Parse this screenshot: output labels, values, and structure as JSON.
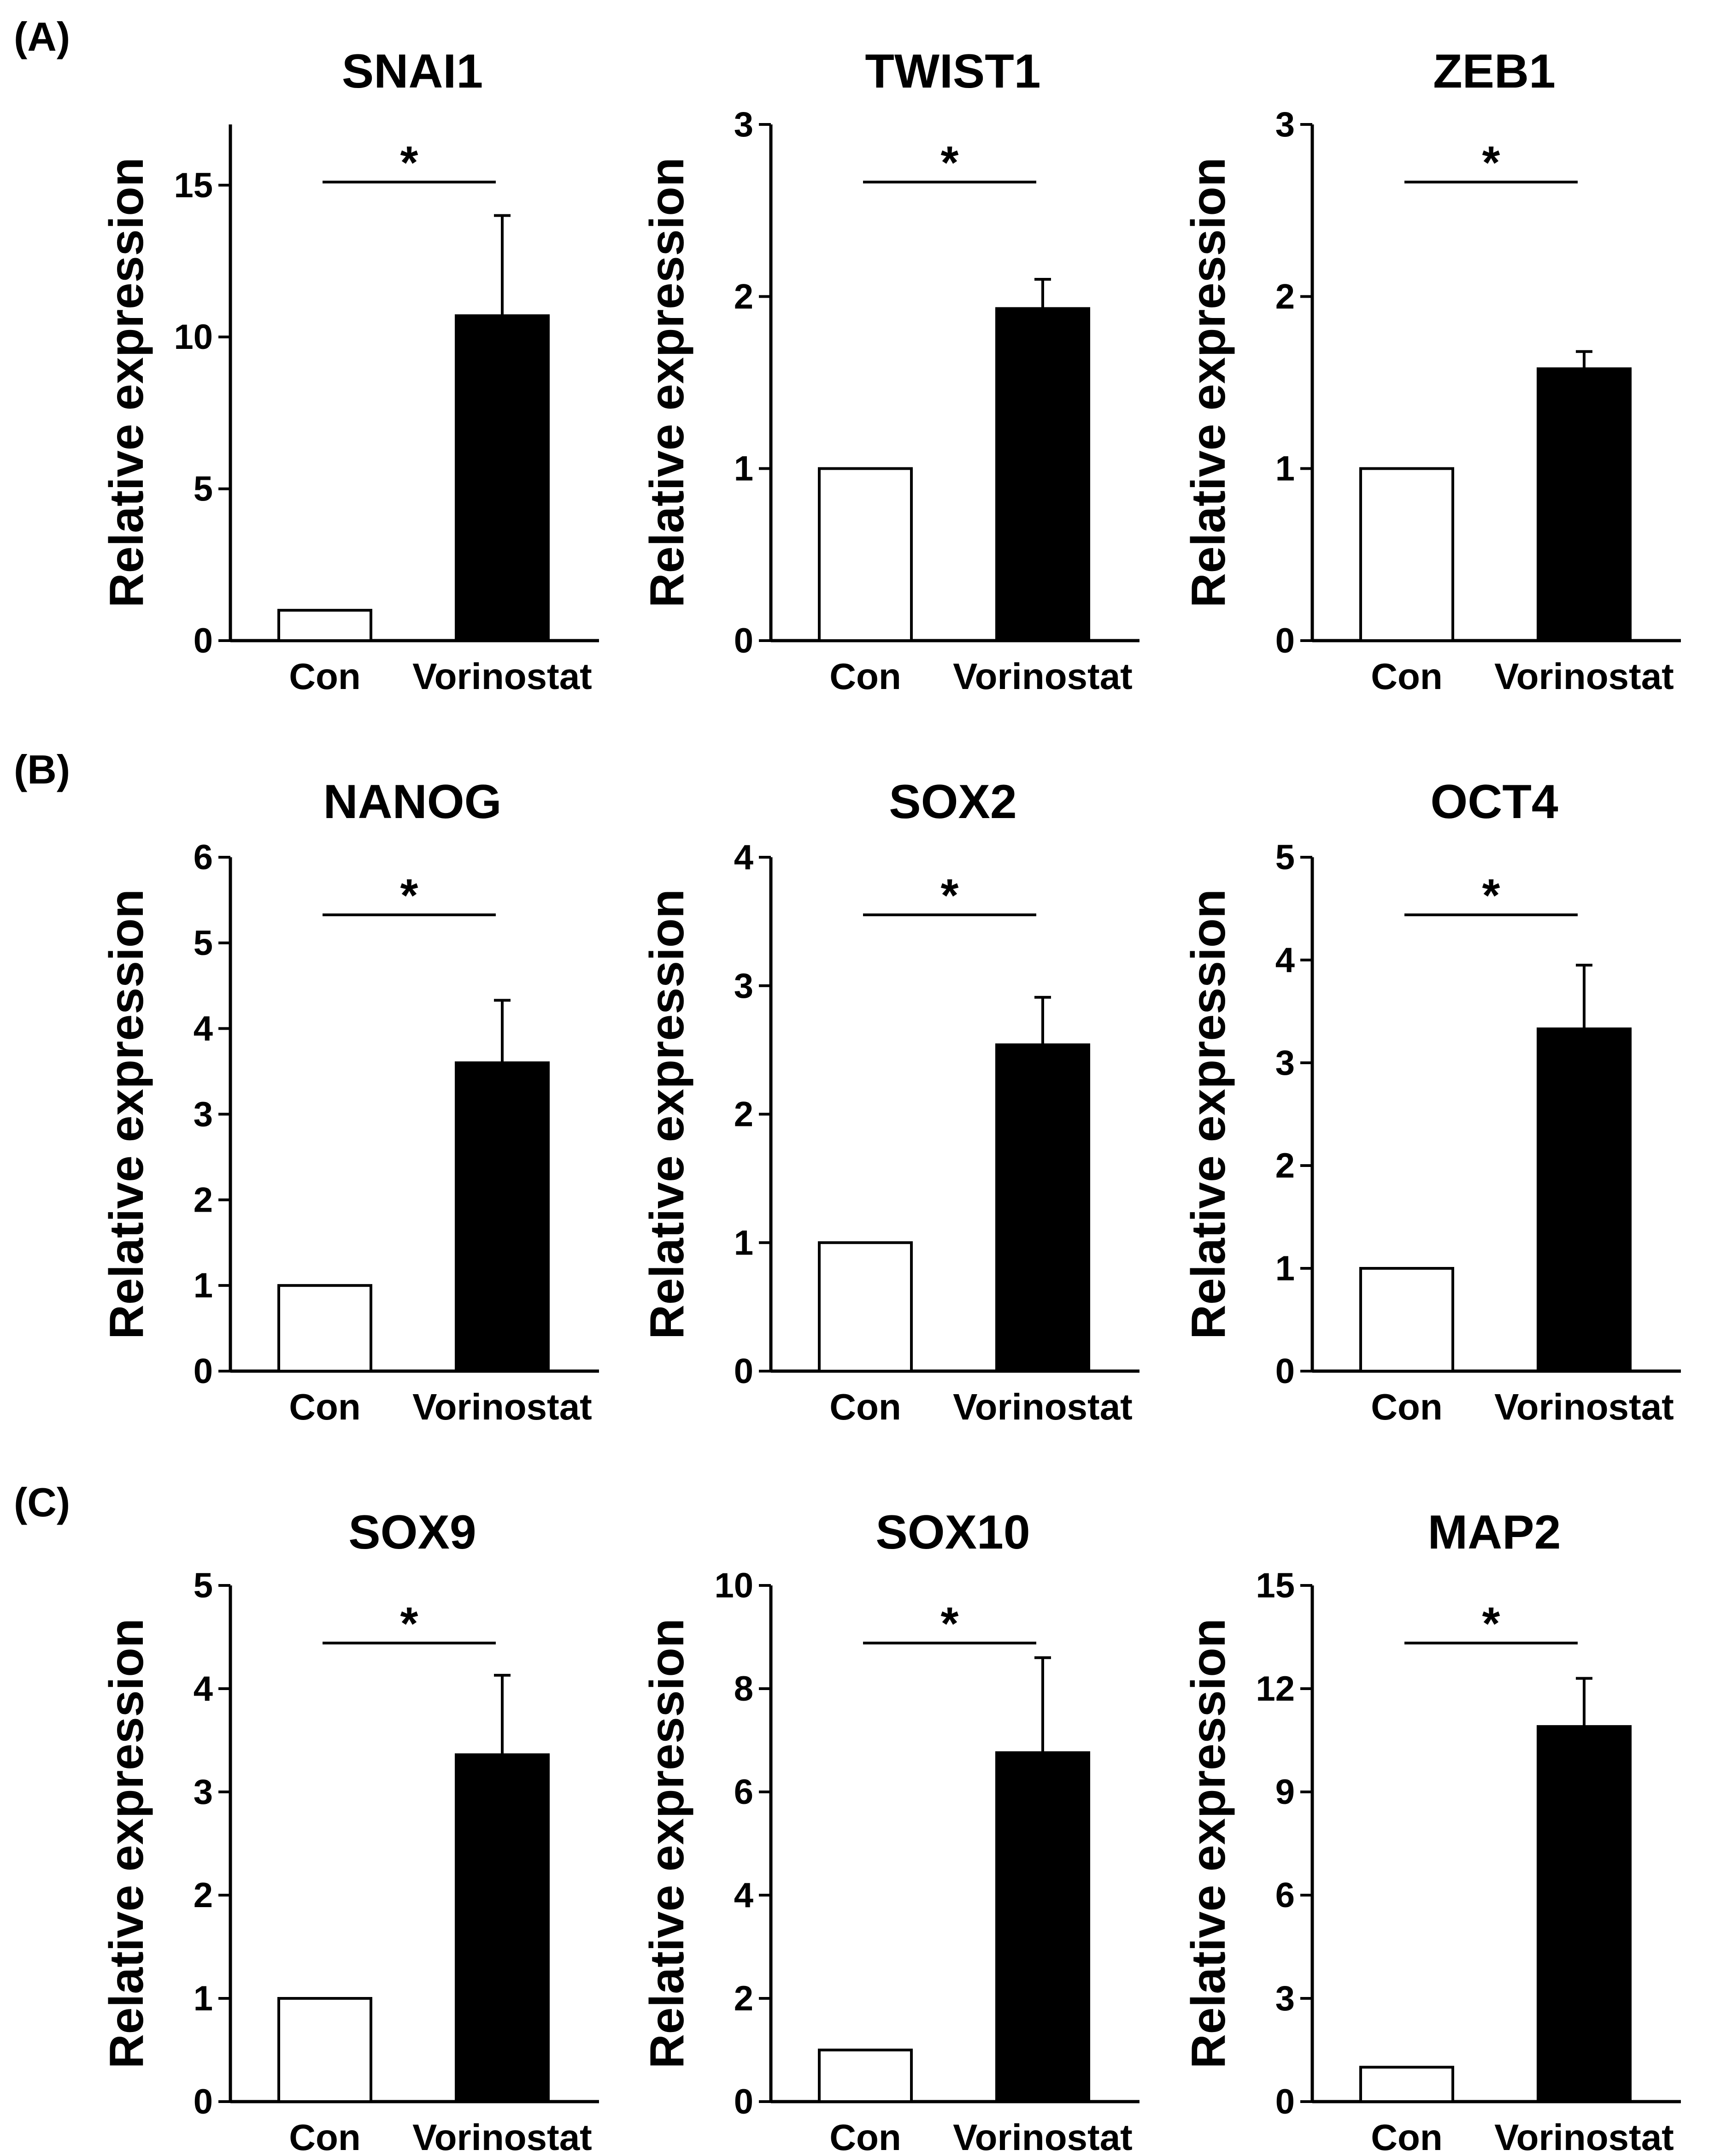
{
  "figure": {
    "panels": [
      {
        "label": "(A)"
      },
      {
        "label": "(B)"
      },
      {
        "label": "(C)"
      }
    ]
  },
  "chart_data": [
    {
      "type": "bar",
      "title": "SNAI1",
      "panel": "(A)",
      "ylabel": "Relative expression",
      "categories": [
        "Con",
        "Vorinostat"
      ],
      "values": [
        1.0,
        10.7
      ],
      "errors": [
        0,
        3.3
      ],
      "ylim": [
        0,
        17
      ],
      "yticks": [
        0,
        5,
        10,
        15
      ],
      "colors": [
        "#ffffff",
        "#000000"
      ],
      "significance": "*"
    },
    {
      "type": "bar",
      "title": "TWIST1",
      "panel": "(A)",
      "ylabel": "Relative expression",
      "categories": [
        "Con",
        "Vorinostat"
      ],
      "values": [
        1.0,
        1.93
      ],
      "errors": [
        0,
        0.17
      ],
      "ylim": [
        0,
        3
      ],
      "yticks": [
        0,
        1,
        2,
        3
      ],
      "colors": [
        "#ffffff",
        "#000000"
      ],
      "significance": "*"
    },
    {
      "type": "bar",
      "title": "ZEB1",
      "panel": "(A)",
      "ylabel": "Relative expression",
      "categories": [
        "Con",
        "Vorinostat"
      ],
      "values": [
        1.0,
        1.58
      ],
      "errors": [
        0,
        0.1
      ],
      "ylim": [
        0,
        3
      ],
      "yticks": [
        0,
        1,
        2,
        3
      ],
      "colors": [
        "#ffffff",
        "#000000"
      ],
      "significance": "*"
    },
    {
      "type": "bar",
      "title": "NANOG",
      "panel": "(B)",
      "ylabel": "Relative expression",
      "categories": [
        "Con",
        "Vorinostat"
      ],
      "values": [
        1.0,
        3.6
      ],
      "errors": [
        0,
        0.73
      ],
      "ylim": [
        0,
        6
      ],
      "yticks": [
        0,
        1,
        2,
        3,
        4,
        5,
        6
      ],
      "colors": [
        "#ffffff",
        "#000000"
      ],
      "significance": "*"
    },
    {
      "type": "bar",
      "title": "SOX2",
      "panel": "(B)",
      "ylabel": "Relative expression",
      "categories": [
        "Con",
        "Vorinostat"
      ],
      "values": [
        1.0,
        2.54
      ],
      "errors": [
        0,
        0.37
      ],
      "ylim": [
        0,
        4
      ],
      "yticks": [
        0,
        1,
        2,
        3,
        4
      ],
      "colors": [
        "#ffffff",
        "#000000"
      ],
      "significance": "*"
    },
    {
      "type": "bar",
      "title": "OCT4",
      "panel": "(B)",
      "ylabel": "Relative expression",
      "categories": [
        "Con",
        "Vorinostat"
      ],
      "values": [
        1.0,
        3.33
      ],
      "errors": [
        0,
        0.62
      ],
      "ylim": [
        0,
        5
      ],
      "yticks": [
        0,
        1,
        2,
        3,
        4,
        5
      ],
      "colors": [
        "#ffffff",
        "#000000"
      ],
      "significance": "*"
    },
    {
      "type": "bar",
      "title": "SOX9",
      "panel": "(C)",
      "ylabel": "Relative expression",
      "categories": [
        "Con",
        "Vorinostat"
      ],
      "values": [
        1.0,
        3.36
      ],
      "errors": [
        0,
        0.77
      ],
      "ylim": [
        0,
        5
      ],
      "yticks": [
        0,
        1,
        2,
        3,
        4,
        5
      ],
      "colors": [
        "#ffffff",
        "#000000"
      ],
      "significance": "*"
    },
    {
      "type": "bar",
      "title": "SOX10",
      "panel": "(C)",
      "ylabel": "Relative expression",
      "categories": [
        "Con",
        "Vorinostat"
      ],
      "values": [
        1.0,
        6.76
      ],
      "errors": [
        0,
        1.84
      ],
      "ylim": [
        0,
        10
      ],
      "yticks": [
        0,
        2,
        4,
        6,
        8,
        10
      ],
      "colors": [
        "#ffffff",
        "#000000"
      ],
      "significance": "*"
    },
    {
      "type": "bar",
      "title": "MAP2",
      "panel": "(C)",
      "ylabel": "Relative expression",
      "categories": [
        "Con",
        "Vorinostat"
      ],
      "values": [
        1.0,
        10.9
      ],
      "errors": [
        0,
        1.4
      ],
      "ylim": [
        0,
        15
      ],
      "yticks": [
        0,
        3,
        6,
        9,
        12,
        15
      ],
      "colors": [
        "#ffffff",
        "#000000"
      ],
      "significance": "*"
    }
  ]
}
